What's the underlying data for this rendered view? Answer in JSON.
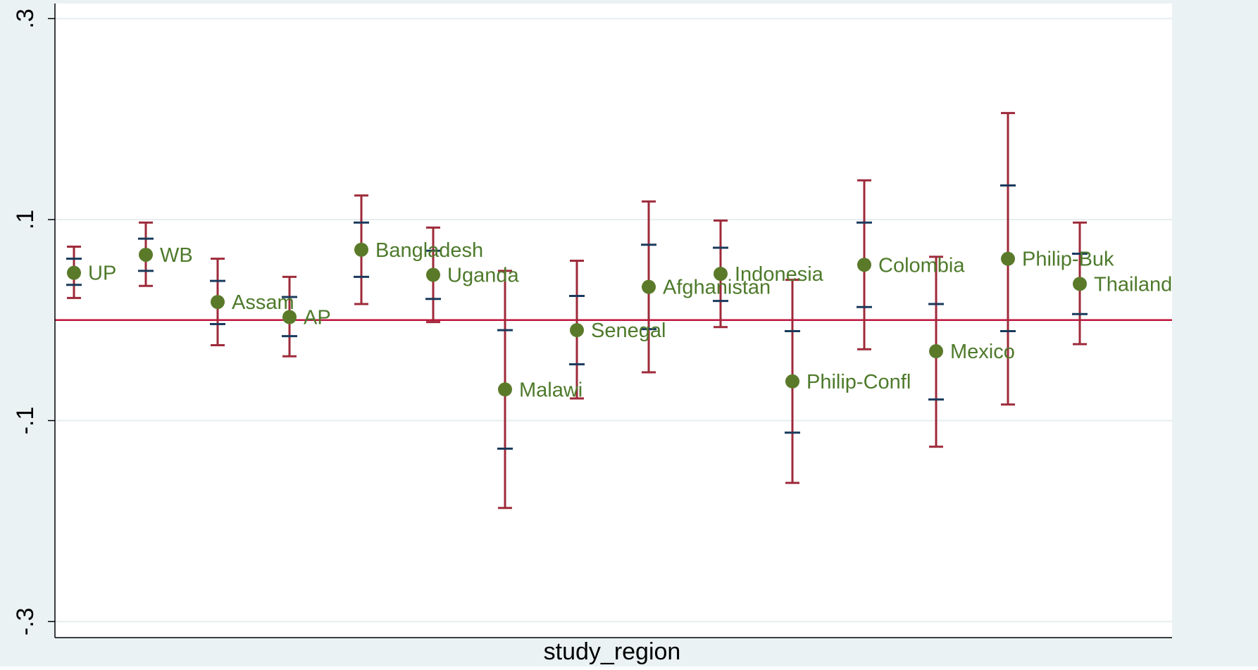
{
  "chart_data": {
    "type": "scatter",
    "xlabel": "study_region",
    "ylabel": "",
    "ylim": [
      -0.316,
      0.315
    ],
    "yticks": [
      {
        "value": 0.3,
        "label": ".3"
      },
      {
        "value": 0.1,
        "label": ".1"
      },
      {
        "value": -0.1,
        "label": "-.1"
      },
      {
        "value": -0.3,
        "label": "-.3"
      }
    ],
    "grid": true,
    "reference_line": 0,
    "colors": {
      "background": "#eaf2f3",
      "plot_area": "#ffffff",
      "point": "#5a7a2a",
      "label": "#4e7a2b",
      "ci_outer": "#9e2a3a",
      "ci_inner": "#1a3a5c",
      "reference": "#c0143c",
      "grid": "#e6eef0"
    },
    "points": [
      {
        "label": "UP",
        "x": 1,
        "y": 0.047,
        "ci95": [
          0.022,
          0.073
        ],
        "ci90": [
          0.035,
          0.061
        ]
      },
      {
        "label": "WB",
        "x": 2,
        "y": 0.065,
        "ci95": [
          0.034,
          0.097
        ],
        "ci90": [
          0.049,
          0.081
        ]
      },
      {
        "label": "Assam",
        "x": 3,
        "y": 0.018,
        "ci95": [
          -0.025,
          0.061
        ],
        "ci90": [
          -0.004,
          0.039
        ]
      },
      {
        "label": "AP",
        "x": 4,
        "y": 0.003,
        "ci95": [
          -0.036,
          0.043
        ],
        "ci90": [
          -0.016,
          0.023
        ]
      },
      {
        "label": "Bangladesh",
        "x": 5,
        "y": 0.07,
        "ci95": [
          0.016,
          0.124
        ],
        "ci90": [
          0.043,
          0.097
        ]
      },
      {
        "label": "Uganda",
        "x": 6,
        "y": 0.045,
        "ci95": [
          -0.002,
          0.092
        ],
        "ci90": [
          0.021,
          0.069
        ]
      },
      {
        "label": "Malawi",
        "x": 7,
        "y": -0.069,
        "ci95": [
          -0.187,
          0.049
        ],
        "ci90": [
          -0.128,
          -0.01
        ]
      },
      {
        "label": "Senegal",
        "x": 8,
        "y": -0.01,
        "ci95": [
          -0.078,
          0.059
        ],
        "ci90": [
          -0.044,
          0.024
        ]
      },
      {
        "label": "Afghanistan",
        "x": 9,
        "y": 0.033,
        "ci95": [
          -0.052,
          0.118
        ],
        "ci90": [
          -0.009,
          0.075
        ]
      },
      {
        "label": "Indonesia",
        "x": 10,
        "y": 0.046,
        "ci95": [
          -0.007,
          0.099
        ],
        "ci90": [
          0.019,
          0.072
        ]
      },
      {
        "label": "Philip-Confl",
        "x": 11,
        "y": -0.061,
        "ci95": [
          -0.162,
          0.04
        ],
        "ci90": [
          -0.112,
          -0.011
        ]
      },
      {
        "label": "Colombia",
        "x": 12,
        "y": 0.055,
        "ci95": [
          -0.029,
          0.139
        ],
        "ci90": [
          0.013,
          0.097
        ]
      },
      {
        "label": "Mexico",
        "x": 13,
        "y": -0.031,
        "ci95": [
          -0.126,
          0.063
        ],
        "ci90": [
          -0.079,
          0.016
        ]
      },
      {
        "label": "Philip-Buk",
        "x": 14,
        "y": 0.061,
        "ci95": [
          -0.084,
          0.206
        ],
        "ci90": [
          -0.011,
          0.134
        ]
      },
      {
        "label": "Thailand",
        "x": 15,
        "y": 0.036,
        "ci95": [
          -0.024,
          0.097
        ],
        "ci90": [
          0.006,
          0.066
        ]
      }
    ]
  }
}
